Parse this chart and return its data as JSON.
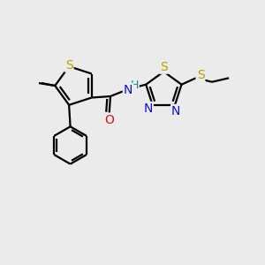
{
  "bg_color": "#ebebeb",
  "atom_colors": {
    "S": "#b8a000",
    "N": "#1010d0",
    "O": "#dd1010",
    "C": "#000000",
    "H": "#1a8a8a"
  },
  "bond_color": "#000000",
  "bond_width": 1.6,
  "fig_size": [
    3.0,
    3.0
  ],
  "dpi": 100
}
